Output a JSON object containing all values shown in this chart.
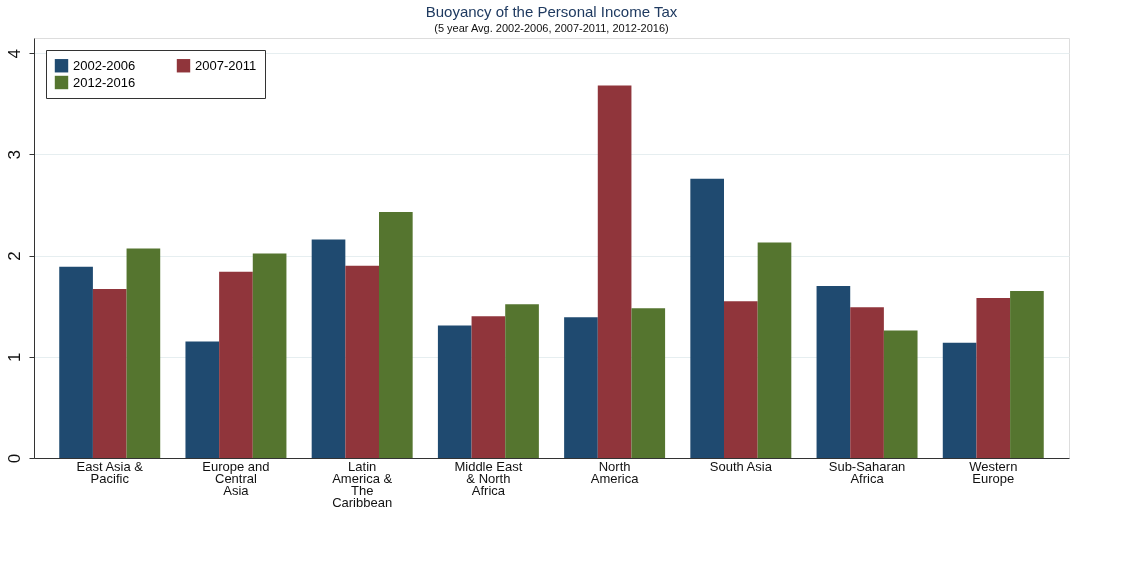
{
  "chart_data": {
    "type": "bar",
    "title": "Buoyancy of the Personal Income Tax",
    "subtitle": "(5 year Avg. 2002-2006, 2007-2011, 2012-2016)",
    "categories": [
      "East Asia & Pacific",
      "Europe and Central Asia",
      "Latin America & The Caribbean",
      "Middle East & North Africa",
      "North America",
      "South Asia",
      "Sub-Saharan Africa",
      "Western Europe"
    ],
    "series": [
      {
        "name": "2002-2006",
        "color": "#1f4a70",
        "values": [
          1.89,
          1.15,
          2.16,
          1.31,
          1.39,
          2.76,
          1.7,
          1.14
        ]
      },
      {
        "name": "2007-2011",
        "color": "#90353b",
        "values": [
          1.67,
          1.84,
          1.9,
          1.4,
          3.68,
          1.55,
          1.49,
          1.58
        ]
      },
      {
        "name": "2012-2016",
        "color": "#55752f",
        "values": [
          2.07,
          2.02,
          2.43,
          1.52,
          1.48,
          2.13,
          1.26,
          1.65
        ]
      }
    ],
    "ylim": [
      0,
      4.15
    ],
    "yticks": [
      0,
      1,
      2,
      3,
      4
    ],
    "grid": "y",
    "legend": "top left"
  }
}
